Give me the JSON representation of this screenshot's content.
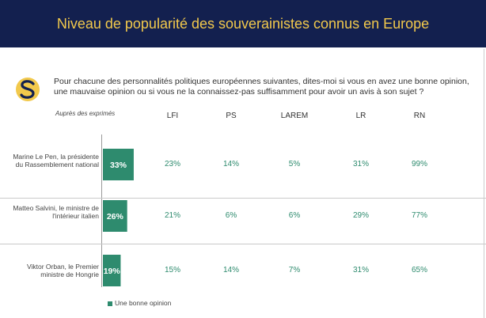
{
  "header": {
    "title": "Niveau de popularité des souverainistes connus en Europe"
  },
  "question": "Pour chacune des personnalités politiques européennes suivantes, dites-moi si vous en avez une bonne opinion, une mauvaise opinion ou si vous ne la connaissez-pas suffisamment pour avoir un avis à son sujet ?",
  "colors": {
    "header_bg": "#13204f",
    "header_text": "#f2c94c",
    "bar": "#2e8b6e",
    "party_values": "#2e8b6e"
  },
  "chart_data": {
    "type": "bar",
    "subtitle": "Auprès des exprimés",
    "categories": [
      "Marine Le Pen, la présidente du Rassemblement national",
      "Matteo Salvini, le ministre de l'intérieur italien",
      "Viktor Orban, le Premier ministre de Hongrie"
    ],
    "series": [
      {
        "name": "Une bonne opinion",
        "values": [
          33,
          26,
          19
        ]
      }
    ],
    "value_labels": [
      "33%",
      "26%",
      "19%"
    ],
    "xlim": [
      0,
      100
    ],
    "breakdown": {
      "columns": [
        "LFI",
        "PS",
        "LAREM",
        "LR",
        "RN"
      ],
      "rows": [
        [
          "23%",
          "14%",
          "5%",
          "31%",
          "99%"
        ],
        [
          "21%",
          "6%",
          "6%",
          "29%",
          "77%"
        ],
        [
          "15%",
          "14%",
          "7%",
          "31%",
          "65%"
        ]
      ]
    }
  }
}
